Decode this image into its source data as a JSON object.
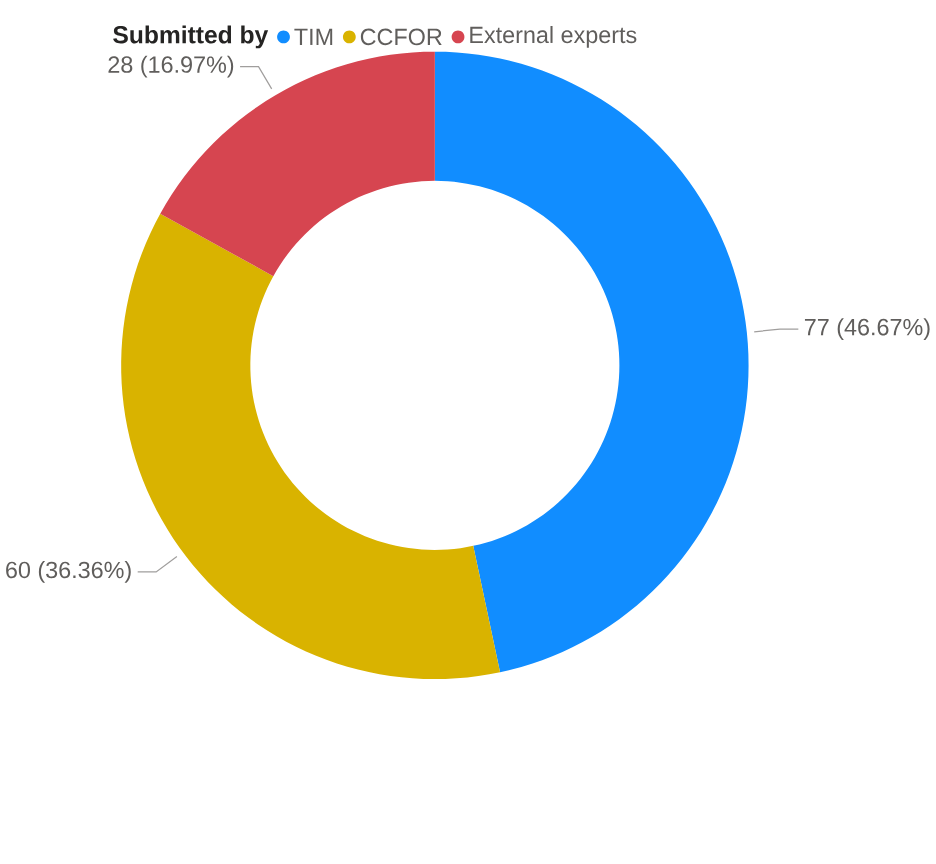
{
  "chart_data": {
    "type": "donut",
    "legend_title": "Submitted by",
    "legend": "top left",
    "categories": [
      "TIM",
      "CCFOR",
      "External experts"
    ],
    "values": [
      77,
      60,
      28
    ],
    "colors": [
      "#118dff",
      "#d9b300",
      "#d64550"
    ],
    "value_labels": [
      "77 (46.67%)",
      "60 (36.36%)",
      "28 (16.97%)"
    ]
  }
}
